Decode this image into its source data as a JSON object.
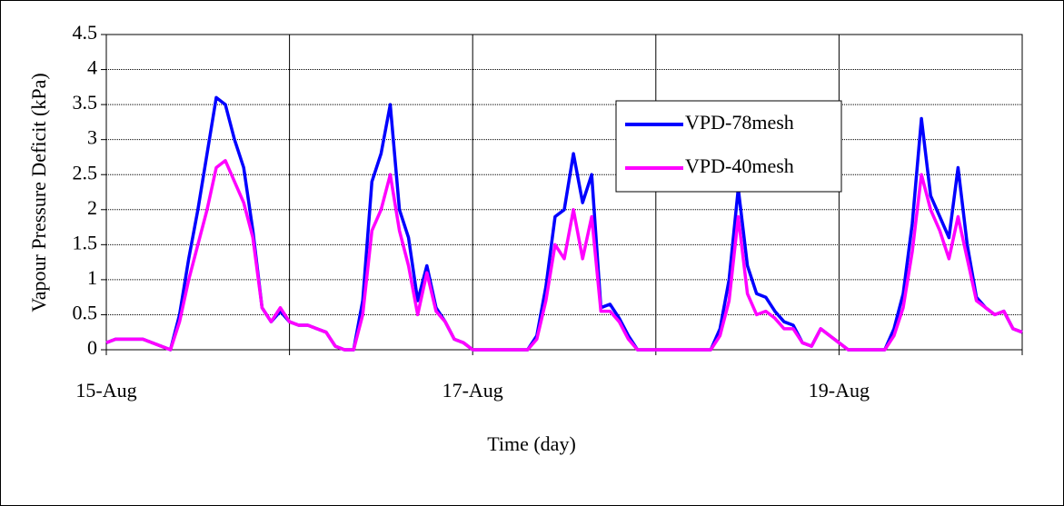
{
  "chart_data": {
    "type": "line",
    "x_label": "Time (day)",
    "y_label": "Vapour Pressure Deficit (kPa)",
    "x": [
      0,
      0.05,
      0.1,
      0.15,
      0.2,
      0.25,
      0.3,
      0.35,
      0.4,
      0.45,
      0.5,
      0.55,
      0.6,
      0.65,
      0.7,
      0.75,
      0.8,
      0.85,
      0.9,
      0.95,
      1,
      1.05,
      1.1,
      1.15,
      1.2,
      1.25,
      1.3,
      1.35,
      1.4,
      1.45,
      1.5,
      1.55,
      1.6,
      1.65,
      1.7,
      1.75,
      1.8,
      1.85,
      1.9,
      1.95,
      2,
      2.05,
      2.1,
      2.15,
      2.2,
      2.25,
      2.3,
      2.35,
      2.4,
      2.45,
      2.5,
      2.55,
      2.6,
      2.65,
      2.7,
      2.75,
      2.8,
      2.85,
      2.9,
      2.95,
      3,
      3.05,
      3.1,
      3.15,
      3.2,
      3.25,
      3.3,
      3.35,
      3.4,
      3.45,
      3.5,
      3.55,
      3.6,
      3.65,
      3.7,
      3.75,
      3.8,
      3.85,
      3.9,
      3.95,
      4,
      4.05,
      4.1,
      4.15,
      4.2,
      4.25,
      4.3,
      4.35,
      4.4,
      4.45,
      4.5,
      4.55,
      4.6,
      4.65,
      4.7,
      4.75,
      4.8,
      4.85,
      4.9,
      4.95,
      5
    ],
    "series": [
      {
        "name": "VPD-78mesh",
        "color": "#0000ff",
        "values": [
          0.1,
          0.15,
          0.15,
          0.15,
          0.15,
          0.1,
          0.05,
          0,
          0.5,
          1.3,
          2.0,
          2.8,
          3.6,
          3.5,
          3.0,
          2.6,
          1.7,
          0.6,
          0.4,
          0.55,
          0.4,
          0.35,
          0.35,
          0.3,
          0.25,
          0.05,
          0,
          0,
          0.7,
          2.4,
          2.8,
          3.5,
          2.0,
          1.6,
          0.7,
          1.2,
          0.6,
          0.4,
          0.15,
          0.1,
          0,
          0,
          0,
          0,
          0,
          0,
          0,
          0.2,
          0.9,
          1.9,
          2.0,
          2.8,
          2.1,
          2.5,
          0.6,
          0.65,
          0.45,
          0.2,
          0,
          0,
          0,
          0,
          0,
          0,
          0,
          0,
          0,
          0.3,
          1.0,
          2.3,
          1.2,
          0.8,
          0.75,
          0.55,
          0.4,
          0.35,
          0.1,
          0.05,
          0.3,
          0.2,
          0.1,
          0,
          0,
          0,
          0,
          0,
          0.3,
          0.8,
          1.8,
          3.3,
          2.2,
          1.9,
          1.6,
          2.6,
          1.5,
          0.75,
          0.6,
          0.5,
          0.55,
          0.3,
          0.25
        ]
      },
      {
        "name": "VPD-40mesh",
        "color": "#ff00ff",
        "values": [
          0.1,
          0.15,
          0.15,
          0.15,
          0.15,
          0.1,
          0.05,
          0,
          0.4,
          1.0,
          1.5,
          2.0,
          2.6,
          2.7,
          2.4,
          2.1,
          1.6,
          0.6,
          0.4,
          0.6,
          0.4,
          0.35,
          0.35,
          0.3,
          0.25,
          0.05,
          0,
          0,
          0.5,
          1.7,
          2.0,
          2.5,
          1.7,
          1.2,
          0.5,
          1.1,
          0.55,
          0.4,
          0.15,
          0.1,
          0,
          0,
          0,
          0,
          0,
          0,
          0,
          0.15,
          0.7,
          1.5,
          1.3,
          2.0,
          1.3,
          1.9,
          0.55,
          0.55,
          0.4,
          0.15,
          0,
          0,
          0,
          0,
          0,
          0,
          0,
          0,
          0,
          0.2,
          0.7,
          1.9,
          0.8,
          0.5,
          0.55,
          0.45,
          0.3,
          0.3,
          0.1,
          0.05,
          0.3,
          0.2,
          0.1,
          0,
          0,
          0,
          0,
          0,
          0.2,
          0.6,
          1.4,
          2.5,
          2.0,
          1.7,
          1.3,
          1.9,
          1.3,
          0.7,
          0.6,
          0.5,
          0.55,
          0.3,
          0.25
        ]
      }
    ],
    "xlim": [
      0,
      5
    ],
    "xticks": [
      {
        "value": 0,
        "label": "15-Aug"
      },
      {
        "value": 1,
        "label": null
      },
      {
        "value": 2,
        "label": "17-Aug"
      },
      {
        "value": 3,
        "label": null
      },
      {
        "value": 4,
        "label": "19-Aug"
      },
      {
        "value": 5,
        "label": null
      }
    ],
    "ylim": [
      0,
      4.5
    ],
    "yticks": [
      0,
      0.5,
      1,
      1.5,
      2,
      2.5,
      3,
      3.5,
      4,
      4.5
    ],
    "grid": true
  }
}
